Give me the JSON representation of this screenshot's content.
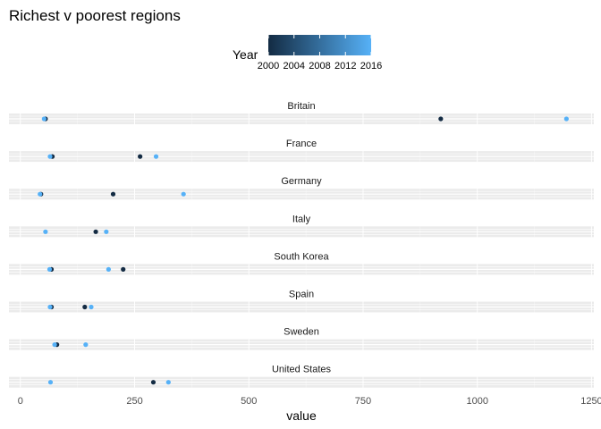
{
  "chart_data": {
    "type": "scatter",
    "title": "Richest v poorest regions",
    "xlabel": "value",
    "ylabel": "",
    "xlim": [
      -25,
      1255
    ],
    "x_ticks": [
      0,
      250,
      500,
      750,
      1000,
      1250
    ],
    "x_tick_labels": [
      "0",
      "250",
      "500",
      "750",
      "1000",
      "1250"
    ],
    "legend": {
      "title": "Year",
      "position": "top",
      "type": "colorbar",
      "range": [
        2000,
        2016
      ],
      "ticks": [
        2000,
        2004,
        2008,
        2012,
        2016
      ],
      "tick_labels": [
        "2000",
        "2004",
        "2008",
        "2012",
        "2016"
      ],
      "colors": {
        "low": "#132b43",
        "high": "#56b1f7"
      }
    },
    "grid": true,
    "facets": [
      {
        "label": "Britain",
        "points": [
          {
            "x": 55,
            "year": 2000
          },
          {
            "x": 920,
            "year": 2000
          },
          {
            "x": 52,
            "year": 2016
          },
          {
            "x": 1195,
            "year": 2016
          }
        ]
      },
      {
        "label": "France",
        "points": [
          {
            "x": 70,
            "year": 2000
          },
          {
            "x": 262,
            "year": 2000
          },
          {
            "x": 65,
            "year": 2016
          },
          {
            "x": 297,
            "year": 2016
          }
        ]
      },
      {
        "label": "Germany",
        "points": [
          {
            "x": 45,
            "year": 2000
          },
          {
            "x": 203,
            "year": 2000
          },
          {
            "x": 43,
            "year": 2016
          },
          {
            "x": 357,
            "year": 2016
          }
        ]
      },
      {
        "label": "Italy",
        "points": [
          {
            "x": 165,
            "year": 2000
          },
          {
            "x": 55,
            "year": 2016
          },
          {
            "x": 188,
            "year": 2016
          }
        ]
      },
      {
        "label": "South Korea",
        "points": [
          {
            "x": 68,
            "year": 2000
          },
          {
            "x": 225,
            "year": 2000
          },
          {
            "x": 64,
            "year": 2016
          },
          {
            "x": 193,
            "year": 2016
          }
        ]
      },
      {
        "label": "Spain",
        "points": [
          {
            "x": 68,
            "year": 2000
          },
          {
            "x": 141,
            "year": 2000
          },
          {
            "x": 65,
            "year": 2016
          },
          {
            "x": 155,
            "year": 2016
          }
        ]
      },
      {
        "label": "Sweden",
        "points": [
          {
            "x": 80,
            "year": 2000
          },
          {
            "x": 75,
            "year": 2016
          },
          {
            "x": 143,
            "year": 2016
          }
        ]
      },
      {
        "label": "United States",
        "points": [
          {
            "x": 291,
            "year": 2000
          },
          {
            "x": 66,
            "year": 2016
          },
          {
            "x": 324,
            "year": 2016
          }
        ]
      }
    ]
  }
}
